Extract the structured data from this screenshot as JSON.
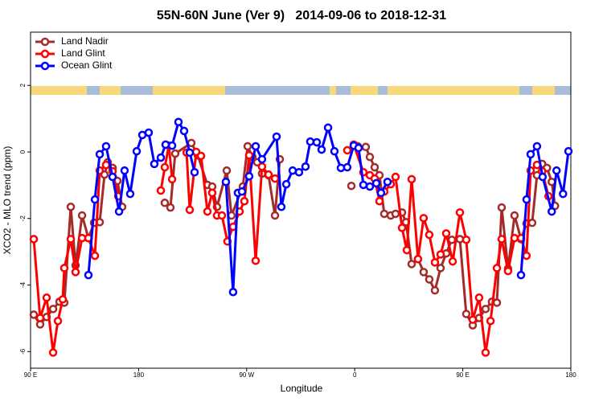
{
  "chart_data": {
    "type": "line",
    "title": "55N-60N June (Ver 9)   2014-09-06 to 2018-12-31",
    "x_label": "Longitude",
    "y_label": "XCO2 - MLO trend (ppm)",
    "xlim": [
      90,
      540
    ],
    "xticks": [
      {
        "value": 90,
        "label": "90 E"
      },
      180,
      {
        "value": 270,
        "label": "90 W"
      },
      {
        "value": 360,
        "label": "0"
      },
      {
        "value": 450,
        "label": "90 E"
      },
      {
        "value": 540,
        "label": "180"
      }
    ],
    "ylim": [
      -6.5,
      3.6
    ],
    "yticks": [
      2,
      0,
      -2,
      -4,
      -6
    ],
    "legend": "top-left",
    "series": [
      {
        "name": "Land Nadir",
        "color": "#a52a2a",
        "x": [
          92.7,
          98.0,
          103.4,
          108.8,
          114.1,
          118.1,
          123.5,
          127.5,
          132.9,
          138.2,
          142.9,
          147.6,
          151.6,
          154.3,
          158.3,
          162.3,
          166.3,
          null,
          201.8,
          206.5,
          210.5,
          223.9,
          229.3,
          237.3,
          241.3,
          245.3,
          253.4,
          257.4,
          266.8,
          270.8,
          274.8,
          278.8,
          282.8,
          288.2,
          293.6,
          297.6,
          null,
          357.2,
          null,
          362.5,
          369.2,
          372.6,
          376.6,
          380.6,
          384.6,
          390.0,
          394.0,
          399.4,
          402.7,
          407.4,
          412.7,
          417.4,
          422.1,
          426.8,
          431.5,
          436.2,
          440.9,
          447.6,
          452.9,
          458.3,
          463.6,
          469.0,
          474.3,
          478.4,
          482.4,
          487.7,
          493.1,
          498.5,
          503.1,
          507.8,
          511.8,
          516.1,
          520.1,
          524.1,
          526.8
        ],
        "values": [
          -4.89,
          -5.18,
          -4.96,
          -4.72,
          -4.5,
          -4.53,
          -1.65,
          -3.41,
          -1.91,
          -2.59,
          -2.13,
          -2.11,
          -0.68,
          -0.31,
          -0.48,
          -0.87,
          -1.65,
          null,
          -1.53,
          -1.67,
          -0.05,
          0.27,
          -0.1,
          -0.99,
          -1.04,
          -1.65,
          -0.56,
          -1.91,
          -1.04,
          0.17,
          -0.15,
          -0.31,
          -0.65,
          -0.7,
          -1.91,
          -0.22,
          null,
          -1.02,
          null,
          0.17,
          0.15,
          -0.15,
          -0.46,
          -0.7,
          -1.86,
          -1.91,
          -1.86,
          -1.82,
          -2.11,
          -3.37,
          -3.22,
          -3.61,
          -3.83,
          -4.16,
          -3.49,
          -3.05,
          -2.64,
          -2.62,
          -4.87,
          -5.21,
          -4.99,
          -4.72,
          -4.5,
          -4.53,
          -1.67,
          -3.51,
          -1.91,
          -2.62,
          -2.15,
          -2.13,
          -0.7,
          -0.36,
          -0.48,
          -0.9,
          -1.62
        ]
      },
      {
        "name": "Land Glint",
        "color": "#ff0000",
        "x": [
          92.7,
          98.0,
          103.4,
          108.8,
          112.8,
          116.8,
          118.1,
          123.5,
          127.5,
          132.9,
          138.2,
          143.6,
          147.6,
          152.9,
          158.3,
          163.0,
          null,
          198.5,
          201.8,
          205.2,
          207.9,
          null,
          220.0,
          222.6,
          228.0,
          232.0,
          237.3,
          241.3,
          245.3,
          249.4,
          254.0,
          258.7,
          264.1,
          268.1,
          272.1,
          277.5,
          282.8,
          288.2,
          293.6,
          null,
          353.8,
          359.2,
          367.2,
          372.6,
          376.6,
          380.6,
          384.6,
          390.0,
          394.0,
          399.4,
          403.4,
          407.4,
          412.7,
          417.4,
          422.1,
          426.8,
          431.5,
          436.2,
          441.6,
          447.6,
          452.9,
          458.3,
          463.6,
          469.0,
          473.1,
          478.4,
          482.4,
          487.7,
          493.1,
          498.5,
          503.1,
          506.5,
          511.8,
          516.1,
          521.4
        ],
        "values": [
          -2.62,
          -4.99,
          -4.38,
          -6.03,
          -5.08,
          -4.43,
          -3.49,
          -2.62,
          -3.61,
          -2.59,
          -2.59,
          -3.12,
          -0.56,
          -0.39,
          -0.58,
          -1.33,
          null,
          -1.16,
          -0.46,
          0.19,
          -0.82,
          null,
          -0.02,
          -1.74,
          0.0,
          -0.12,
          -1.79,
          -1.23,
          -1.91,
          -1.91,
          -2.69,
          -2.25,
          -1.79,
          -1.48,
          -0.1,
          -3.27,
          -0.44,
          -0.68,
          -0.8,
          null,
          0.05,
          0.22,
          -0.61,
          -0.7,
          -0.8,
          -1.48,
          -1.19,
          -0.97,
          -0.75,
          -2.28,
          -2.95,
          -0.82,
          -3.22,
          -1.99,
          -2.49,
          -3.32,
          -3.08,
          -2.45,
          -3.29,
          -1.82,
          -2.64,
          -5.04,
          -4.38,
          -6.03,
          -5.08,
          -3.49,
          -2.62,
          -3.58,
          -2.59,
          -2.59,
          -3.12,
          -0.56,
          -0.39,
          -0.58,
          -1.33
        ]
      },
      {
        "name": "Ocean Glint",
        "color": "#0000ff",
        "x": [
          138.2,
          143.6,
          147.6,
          152.9,
          158.3,
          163.7,
          168.3,
          173.0,
          178.4,
          183.1,
          188.4,
          193.1,
          198.5,
          202.5,
          207.9,
          213.2,
          217.9,
          222.6,
          226.6,
          null,
          252.7,
          258.7,
          262.7,
          266.1,
          272.1,
          277.5,
          282.8,
          294.9,
          298.9,
          303.0,
          308.3,
          313.6,
          319.0,
          323.0,
          328.4,
          332.4,
          337.8,
          343.1,
          348.5,
          353.8,
          359.2,
          363.2,
          367.2,
          372.6,
          378.0,
          381.9,
          387.3,
          null,
          498.5,
          503.1,
          506.5,
          511.8,
          516.5,
          524.1,
          528.1,
          533.5,
          538.0
        ],
        "values": [
          -3.7,
          -1.43,
          -0.07,
          0.17,
          -0.75,
          -1.79,
          -0.56,
          -1.26,
          0.02,
          0.51,
          0.58,
          -0.36,
          -0.17,
          0.22,
          0.19,
          0.9,
          0.63,
          -0.02,
          -0.61,
          null,
          -0.9,
          -4.21,
          -1.23,
          -1.19,
          -0.73,
          0.17,
          -0.22,
          0.46,
          -1.65,
          -0.97,
          -0.56,
          -0.61,
          -0.44,
          0.31,
          0.29,
          0.07,
          0.73,
          0.02,
          -0.48,
          -0.46,
          0.19,
          0.12,
          -0.99,
          -1.04,
          -0.94,
          -1.23,
          -0.9,
          null,
          -3.7,
          -1.43,
          -0.07,
          0.17,
          -0.75,
          -1.79,
          -0.56,
          -1.26,
          0.02
        ]
      }
    ]
  }
}
